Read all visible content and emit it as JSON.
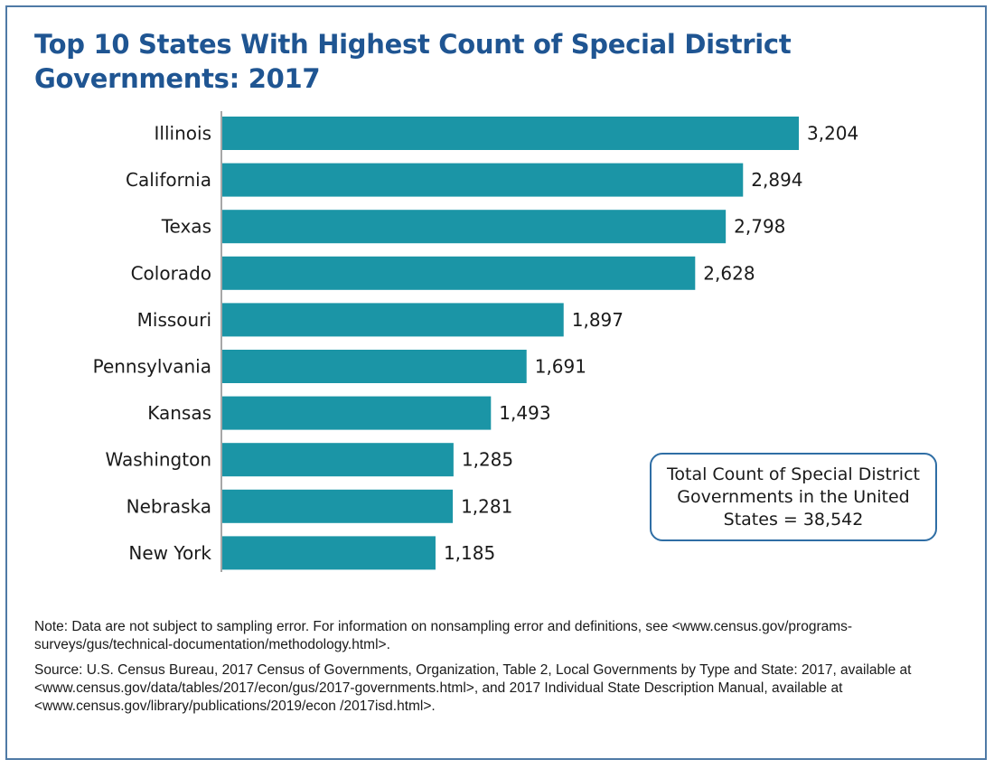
{
  "chart_data": {
    "type": "bar",
    "orientation": "horizontal",
    "title": "Top 10 States With Highest Count of Special District Governments: 2017",
    "categories": [
      "Illinois",
      "California",
      "Texas",
      "Colorado",
      "Missouri",
      "Pennsylvania",
      "Kansas",
      "Washington",
      "Nebraska",
      "New York"
    ],
    "values": [
      3204,
      2894,
      2798,
      2628,
      1897,
      1691,
      1493,
      1285,
      1281,
      1185
    ],
    "value_labels": [
      "3,204",
      "2,894",
      "2,798",
      "2,628",
      "1,897",
      "1,691",
      "1,493",
      "1,285",
      "1,281",
      "1,185"
    ],
    "xlabel": "",
    "ylabel": "",
    "xlim": [
      0,
      3204
    ],
    "grid": false,
    "legend": "none",
    "bar_color": "#1b95a6",
    "annotations": [
      "Total Count of Special District Governments in the United States = 38,542"
    ]
  },
  "title_color": "#1f5592",
  "frame_color": "#4f7aa6",
  "callout": {
    "text": "Total Count of Special District Governments in the United States = 38,542"
  },
  "notes": {
    "note": "Note: Data are not subject to sampling error. For information on nonsampling error and definitions, see <www.census.gov/programs-surveys/gus/technical-documentation/methodology.html>.",
    "source": "Source: U.S. Census Bureau, 2017 Census of Governments, Organization, Table 2, Local Governments by Type and State: 2017, available at <www.census.gov/data/tables/2017/econ/gus/2017-governments.html>, and 2017 Individual State Description Manual, available at <www.census.gov/library/publications/2019/econ /2017isd.html>."
  }
}
